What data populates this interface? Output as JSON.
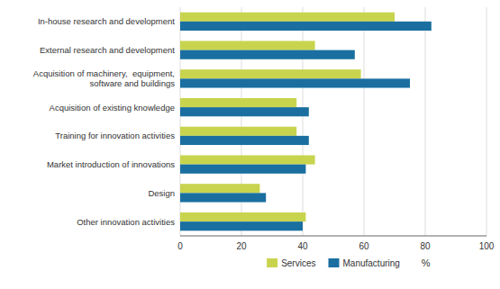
{
  "chart_data": {
    "type": "bar",
    "orientation": "horizontal",
    "categories": [
      "In-house research and development",
      "External research and development",
      "Acquisition of machinery,  equipment,\nsoftware and buildings",
      "Acquisition of existing knowledge",
      "Training for innovation activities",
      "Market introduction of innovations",
      "Design",
      "Other innovation activities"
    ],
    "series": [
      {
        "name": "Services",
        "color": "#c8d44e",
        "values": [
          70,
          44,
          59,
          38,
          38,
          44,
          26,
          41
        ]
      },
      {
        "name": "Manufacturing",
        "color": "#1a6fa0",
        "values": [
          82,
          57,
          75,
          42,
          42,
          41,
          28,
          40
        ]
      }
    ],
    "xlabel": "%",
    "xlim": [
      0,
      100
    ],
    "xticks": [
      0,
      20,
      40,
      60,
      80,
      100
    ],
    "grid": true,
    "legend": "bottom"
  }
}
